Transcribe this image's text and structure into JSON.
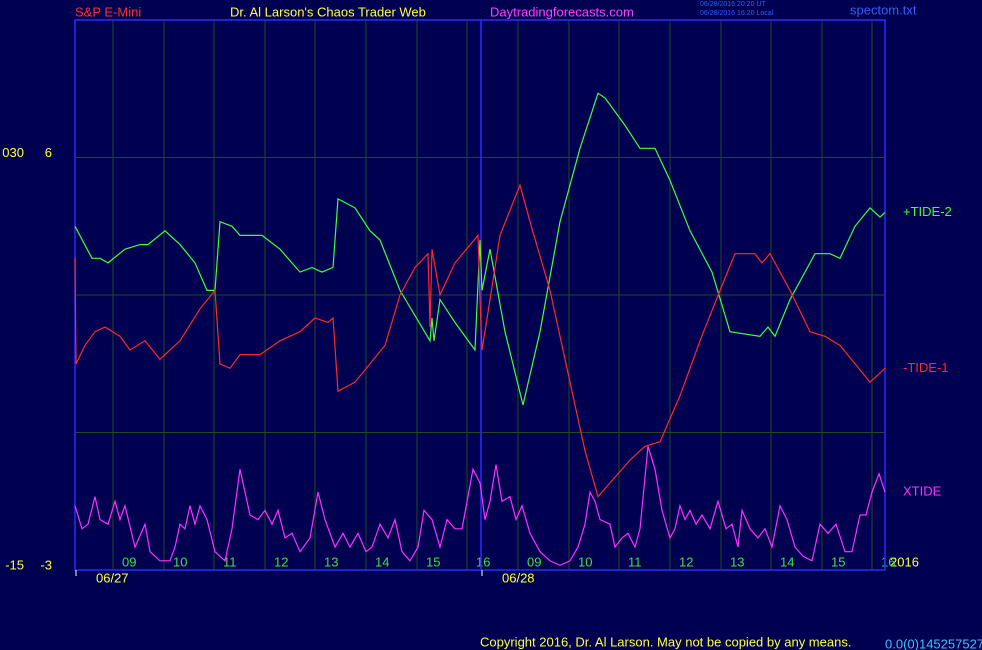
{
  "chart_data": {
    "type": "line",
    "annotations": {
      "market": "S&P E-Mini",
      "site_title": "Dr. Al Larson's Chaos Trader Web",
      "url": "Daytradingforecasts.com",
      "timestamp_ut": "06/28/2016 20:20 UT",
      "timestamp_local": "06/28/2016 16:20 Local",
      "file": "spectom.txt",
      "year": "2016",
      "copyright": "Copyright 2016, Dr. Al Larson. May not be copied by any means.",
      "code": "0.0(0)145257527"
    },
    "xlim": [
      0,
      810
    ],
    "xticks": [
      {
        "value": 38,
        "label": "09"
      },
      {
        "value": 89,
        "label": "10"
      },
      {
        "value": 139,
        "label": "11"
      },
      {
        "value": 190,
        "label": "12"
      },
      {
        "value": 240,
        "label": "13"
      },
      {
        "value": 291,
        "label": "14"
      },
      {
        "value": 342,
        "label": "15"
      },
      {
        "value": 392,
        "label": "16"
      },
      {
        "value": 443,
        "label": "09"
      },
      {
        "value": 494,
        "label": "10"
      },
      {
        "value": 544,
        "label": "11"
      },
      {
        "value": 595,
        "label": "12"
      },
      {
        "value": 646,
        "label": "13"
      },
      {
        "value": 696,
        "label": "14"
      },
      {
        "value": 747,
        "label": "15"
      },
      {
        "value": 797,
        "label": "16"
      }
    ],
    "date_ticks": [
      {
        "value": 0,
        "label": "06/27"
      },
      {
        "value": 406,
        "label": "06/28"
      }
    ],
    "day_separator": 406,
    "ylim": [
      -3,
      9
    ],
    "yticks": [
      -3,
      6
    ],
    "ygrid": [
      0,
      3,
      6
    ],
    "y2lim": [
      -15,
      45
    ],
    "y2ticks": [
      -15,
      {
        "value": 30,
        "label": "030"
      }
    ],
    "grid": true,
    "series": [
      {
        "name": "+TIDE-2",
        "color": "#40ff40",
        "x": [
          0,
          17,
          25,
          33,
          50,
          65,
          73,
          90,
          105,
          120,
          132,
          140,
          145,
          157,
          165,
          187,
          205,
          225,
          237,
          247,
          258,
          263,
          280,
          295,
          305,
          325,
          355,
          357,
          359,
          365,
          380,
          400,
          405,
          407,
          415,
          430,
          448,
          465,
          485,
          505,
          523,
          530,
          550,
          565,
          580,
          595,
          615,
          637,
          655,
          685,
          693,
          700,
          715,
          740,
          755,
          765,
          780,
          795,
          805,
          810
        ],
        "values": [
          4.5,
          3.8,
          3.8,
          3.7,
          4.0,
          4.1,
          4.1,
          4.4,
          4.1,
          3.7,
          3.1,
          3.1,
          4.6,
          4.5,
          4.3,
          4.3,
          4.0,
          3.5,
          3.6,
          3.5,
          3.6,
          5.1,
          4.9,
          4.4,
          4.2,
          3.1,
          2.0,
          2.5,
          2.0,
          2.9,
          2.4,
          1.8,
          4.2,
          3.1,
          4.0,
          2.2,
          0.6,
          2.2,
          4.6,
          6.2,
          7.4,
          7.3,
          6.7,
          6.2,
          6.2,
          5.5,
          4.4,
          3.5,
          2.2,
          2.1,
          2.3,
          2.1,
          2.9,
          3.9,
          3.9,
          3.8,
          4.5,
          4.9,
          4.7,
          4.8
        ]
      },
      {
        "name": "-TIDE-1",
        "color": "#ff2828",
        "x": [
          0,
          1,
          10,
          20,
          30,
          45,
          55,
          70,
          85,
          105,
          125,
          140,
          145,
          155,
          165,
          185,
          205,
          225,
          240,
          253,
          258,
          263,
          280,
          295,
          310,
          325,
          340,
          353,
          355,
          357,
          365,
          380,
          403,
          405,
          407,
          415,
          425,
          445,
          455,
          475,
          495,
          510,
          523,
          535,
          555,
          570,
          585,
          605,
          625,
          645,
          660,
          680,
          687,
          695,
          715,
          735,
          750,
          765,
          780,
          795,
          810
        ],
        "values": [
          3.8,
          1.5,
          1.9,
          2.2,
          2.3,
          2.1,
          1.8,
          2.0,
          1.6,
          2.0,
          2.7,
          3.1,
          1.5,
          1.4,
          1.7,
          1.7,
          2.0,
          2.2,
          2.5,
          2.4,
          2.5,
          0.9,
          1.1,
          1.5,
          1.9,
          3.0,
          3.6,
          3.9,
          2.3,
          4.0,
          3.0,
          3.7,
          4.3,
          2.9,
          1.8,
          2.9,
          4.3,
          5.4,
          4.6,
          3.1,
          1.1,
          -0.4,
          -1.4,
          -1.1,
          -0.6,
          -0.3,
          -0.2,
          0.8,
          2.0,
          3.1,
          3.9,
          3.9,
          3.7,
          3.9,
          3.1,
          2.2,
          2.1,
          1.9,
          1.5,
          1.1,
          1.4
        ]
      },
      {
        "name": "XTIDE",
        "color": "#ff30ff",
        "x": [
          0,
          7,
          13,
          20,
          25,
          33,
          40,
          45,
          50,
          60,
          70,
          75,
          85,
          95,
          100,
          105,
          110,
          115,
          120,
          125,
          132,
          140,
          150,
          157,
          165,
          175,
          183,
          190,
          197,
          203,
          210,
          217,
          225,
          235,
          243,
          250,
          260,
          268,
          275,
          283,
          291,
          297,
          305,
          313,
          320,
          327,
          335,
          343,
          349,
          357,
          365,
          372,
          380,
          387,
          398,
          405,
          410,
          415,
          421,
          427,
          435,
          441,
          447,
          455,
          465,
          475,
          485,
          495,
          503,
          510,
          515,
          520,
          525,
          535,
          540,
          547,
          553,
          560,
          565,
          573,
          580,
          587,
          595,
          600,
          605,
          610,
          615,
          621,
          627,
          635,
          643,
          651,
          657,
          663,
          667,
          675,
          683,
          690,
          697,
          705,
          712,
          720,
          728,
          737,
          745,
          753,
          761,
          770,
          777,
          785,
          791,
          797,
          804,
          810
        ],
        "values": [
          -1.6,
          -2.1,
          -2.0,
          -1.4,
          -1.9,
          -2.0,
          -1.5,
          -1.9,
          -1.6,
          -2.5,
          -2.0,
          -2.6,
          -2.8,
          -2.8,
          -2.5,
          -2.0,
          -2.1,
          -1.6,
          -2.0,
          -1.6,
          -1.9,
          -2.6,
          -2.8,
          -2.1,
          -0.8,
          -1.8,
          -1.9,
          -1.7,
          -2.0,
          -1.7,
          -2.3,
          -2.2,
          -2.6,
          -2.3,
          -1.3,
          -1.9,
          -2.5,
          -2.2,
          -2.5,
          -2.2,
          -2.6,
          -2.5,
          -2.0,
          -2.3,
          -1.9,
          -2.6,
          -2.8,
          -2.5,
          -1.7,
          -1.9,
          -2.5,
          -1.9,
          -2.1,
          -2.1,
          -0.8,
          -1.1,
          -1.9,
          -1.5,
          -0.7,
          -1.5,
          -1.4,
          -1.9,
          -1.6,
          -2.2,
          -2.6,
          -2.8,
          -2.9,
          -2.8,
          -2.5,
          -2.0,
          -1.3,
          -1.5,
          -1.9,
          -2.0,
          -2.5,
          -2.3,
          -2.2,
          -2.5,
          -2.1,
          -0.3,
          -0.8,
          -1.7,
          -2.3,
          -2.1,
          -1.6,
          -1.9,
          -1.7,
          -2.0,
          -1.8,
          -2.1,
          -1.5,
          -2.1,
          -2.0,
          -2.5,
          -1.7,
          -2.1,
          -2.3,
          -2.1,
          -2.5,
          -1.6,
          -1.9,
          -2.5,
          -2.7,
          -2.8,
          -2.0,
          -2.2,
          -2.0,
          -2.6,
          -2.6,
          -1.8,
          -1.8,
          -1.3,
          -0.9,
          -1.3
        ]
      }
    ]
  }
}
